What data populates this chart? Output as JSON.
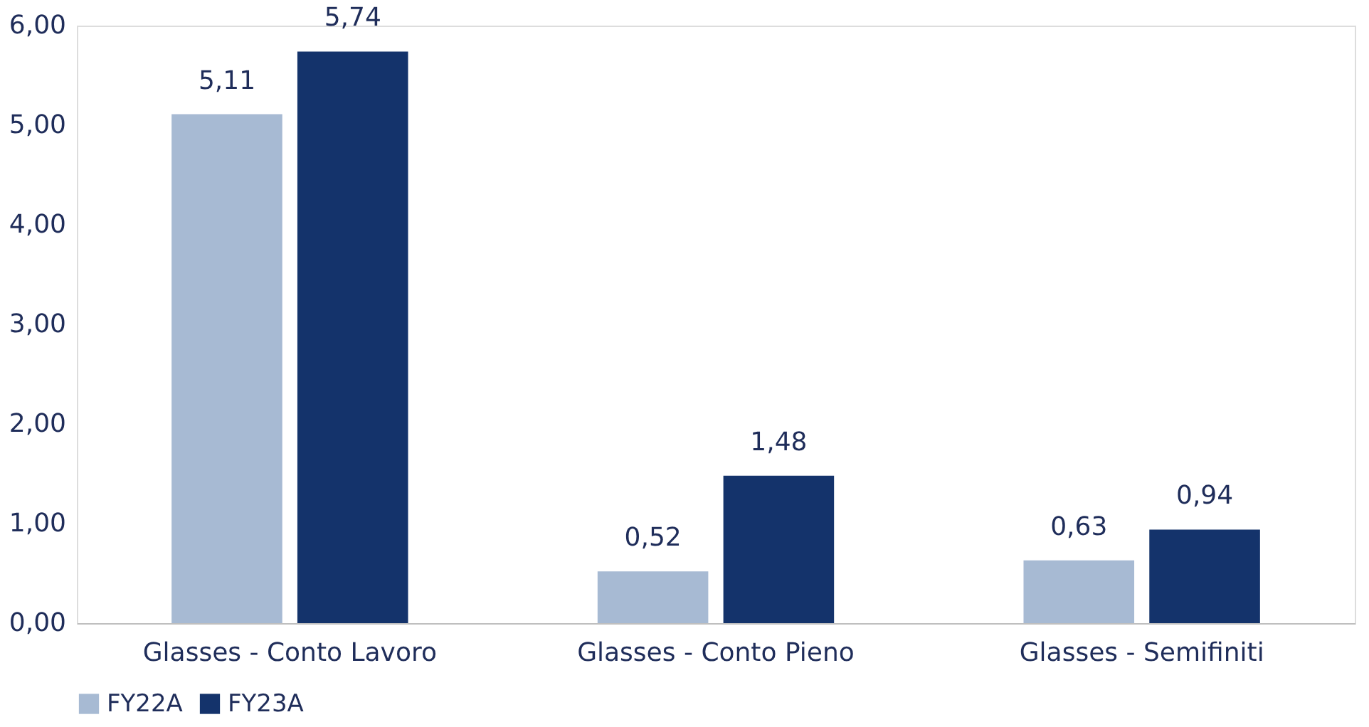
{
  "chart_data": {
    "type": "bar",
    "categories": [
      "Glasses - Conto Lavoro",
      "Glasses - Conto Pieno",
      "Glasses - Semifiniti"
    ],
    "series": [
      {
        "name": "FY22A",
        "color": "#a7bad3",
        "values": [
          5.11,
          0.52,
          0.63
        ],
        "value_labels": [
          "5,11",
          "0,52",
          "0,63"
        ]
      },
      {
        "name": "FY23A",
        "color": "#14336b",
        "values": [
          5.74,
          1.48,
          0.94
        ],
        "value_labels": [
          "5,74",
          "1,48",
          "0,94"
        ]
      }
    ],
    "ylim": [
      0,
      6
    ],
    "yticks": [
      {
        "value": 0,
        "label": "0,00"
      },
      {
        "value": 1,
        "label": "1,00"
      },
      {
        "value": 2,
        "label": "2,00"
      },
      {
        "value": 3,
        "label": "3,00"
      },
      {
        "value": 4,
        "label": "4,00"
      },
      {
        "value": 5,
        "label": "5,00"
      },
      {
        "value": 6,
        "label": "6,00"
      }
    ],
    "grid": false,
    "legend": "bottom"
  }
}
